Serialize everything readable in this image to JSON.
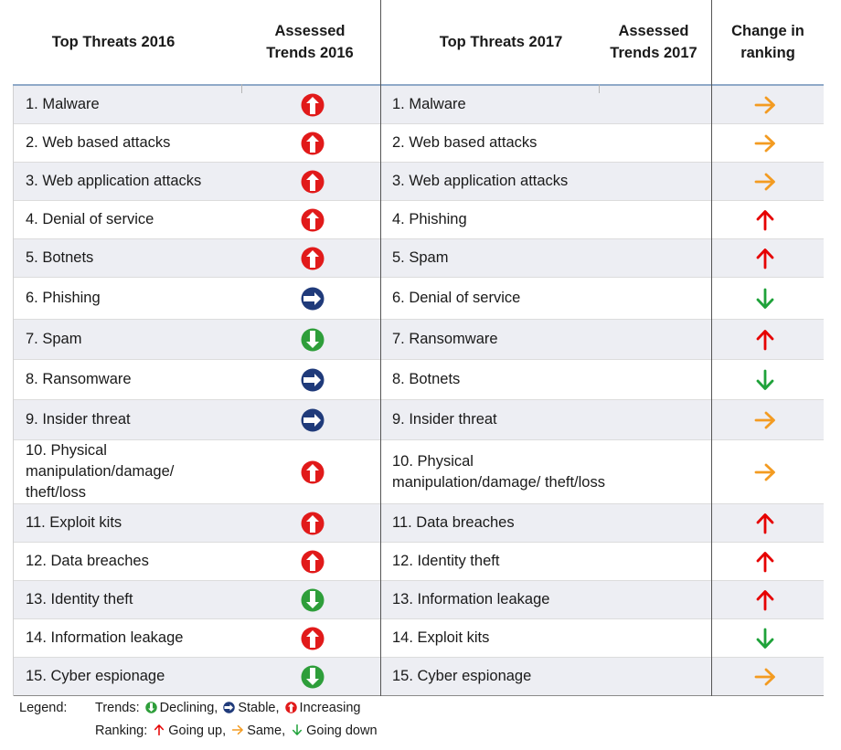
{
  "headers": {
    "top_threats_2016": "Top Threats 2016",
    "assessed_2016_line1": "Assessed",
    "assessed_2016_line2": "Trends 2016",
    "top_threats_2017": "Top Threats 2017",
    "assessed_2017_line1": "Assessed",
    "assessed_2017_line2": "Trends 2017",
    "change_line1": "Change in",
    "change_line2": "ranking"
  },
  "colors": {
    "increasing": "#e11a1a",
    "stable": "#1f3a7a",
    "declining": "#2e9e3a",
    "up": "#e60000",
    "same": "#f39b21",
    "down": "#1fa23a"
  },
  "rows": [
    {
      "t2016": "1. Malware",
      "trend2016": "increasing",
      "t2017": "1. Malware",
      "change": "same"
    },
    {
      "t2016": "2. Web based attacks",
      "trend2016": "increasing",
      "t2017": "2. Web based attacks",
      "change": "same"
    },
    {
      "t2016": "3. Web application attacks",
      "trend2016": "increasing",
      "t2017": "3. Web application attacks",
      "change": "same"
    },
    {
      "t2016": "4. Denial of service",
      "trend2016": "increasing",
      "t2017": "4. Phishing",
      "change": "up"
    },
    {
      "t2016": "5. Botnets",
      "trend2016": "increasing",
      "t2017": "5. Spam",
      "change": "up"
    },
    {
      "t2016": "6. Phishing",
      "trend2016": "stable",
      "t2017": "6. Denial of service",
      "change": "down"
    },
    {
      "t2016": "7. Spam",
      "trend2016": "declining",
      "t2017": "7. Ransomware",
      "change": "up"
    },
    {
      "t2016": "8. Ransomware",
      "trend2016": "stable",
      "t2017": "8. Botnets",
      "change": "down"
    },
    {
      "t2016": "9. Insider threat",
      "trend2016": "stable",
      "t2017": "9. Insider threat",
      "change": "same"
    },
    {
      "t2016": "10. Physical manipulation/damage/ theft/loss",
      "trend2016": "increasing",
      "t2017": "10. Physical manipulation/damage/ theft/loss",
      "change": "same"
    },
    {
      "t2016": "11. Exploit kits",
      "trend2016": "increasing",
      "t2017": "11. Data breaches",
      "change": "up"
    },
    {
      "t2016": "12. Data breaches",
      "trend2016": "increasing",
      "t2017": "12. Identity theft",
      "change": "up"
    },
    {
      "t2016": "13. Identity theft",
      "trend2016": "declining",
      "t2017": "13. Information leakage",
      "change": "up"
    },
    {
      "t2016": "14. Information leakage",
      "trend2016": "increasing",
      "t2017": "14. Exploit kits",
      "change": "down"
    },
    {
      "t2016": "15. Cyber espionage",
      "trend2016": "declining",
      "t2017": "15. Cyber espionage",
      "change": "same"
    }
  ],
  "legend": {
    "label": "Legend:",
    "trends_label": "Trends:",
    "declining": "Declining,",
    "stable": "Stable,",
    "increasing": "Increasing",
    "ranking_label": "Ranking:",
    "going_up": "Going up,",
    "same": "Same,",
    "going_down": "Going down"
  }
}
